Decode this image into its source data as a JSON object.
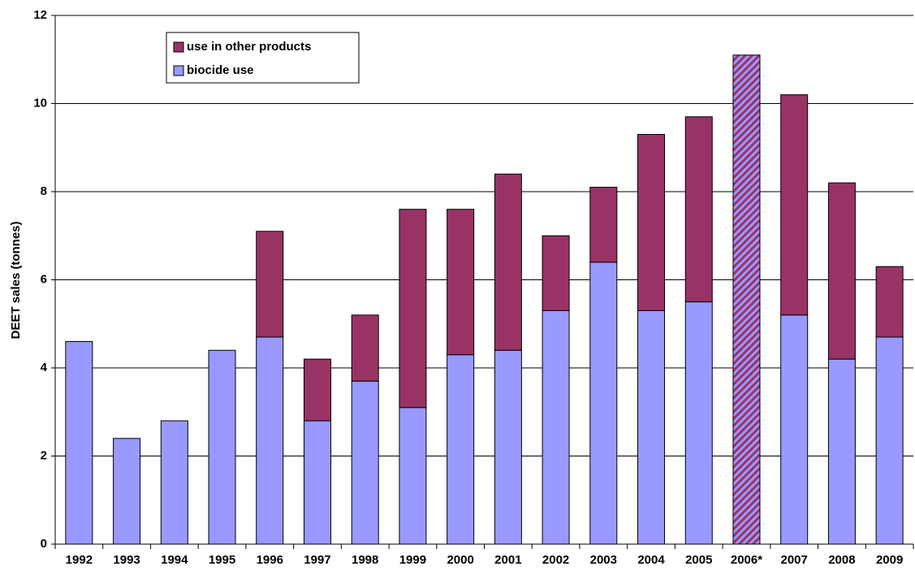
{
  "chart_data": {
    "type": "stacked-bar",
    "y_label": "DEET sales  (tonnes)",
    "categories": [
      "1992",
      "1993",
      "1994",
      "1995",
      "1996",
      "1997",
      "1998",
      "1999",
      "2000",
      "2001",
      "2002",
      "2003",
      "2004",
      "2005",
      "2006*",
      "2007",
      "2008",
      "2009"
    ],
    "series": [
      {
        "name": "biocide use",
        "color": "#9999ff",
        "values": [
          4.6,
          2.4,
          2.8,
          4.4,
          4.7,
          2.8,
          3.7,
          3.1,
          4.3,
          4.4,
          5.3,
          6.4,
          5.3,
          5.5,
          null,
          5.2,
          4.2,
          4.7
        ]
      },
      {
        "name": "use in other products",
        "color": "#993366",
        "values": [
          null,
          null,
          null,
          null,
          2.4,
          1.4,
          1.5,
          4.5,
          3.3,
          4.0,
          1.7,
          1.7,
          4.0,
          4.2,
          null,
          5.0,
          4.0,
          1.6
        ]
      },
      {
        "color": "#993366",
        "pattern": "hatched",
        "values": [
          null,
          null,
          null,
          null,
          null,
          null,
          null,
          null,
          null,
          null,
          null,
          null,
          null,
          null,
          11.1,
          null,
          null,
          null
        ]
      }
    ],
    "legend_order": [
      1,
      0
    ],
    "ylim": [
      0,
      12
    ],
    "yticks": [
      0,
      2,
      4,
      6,
      8,
      10,
      12
    ],
    "grid": true
  }
}
